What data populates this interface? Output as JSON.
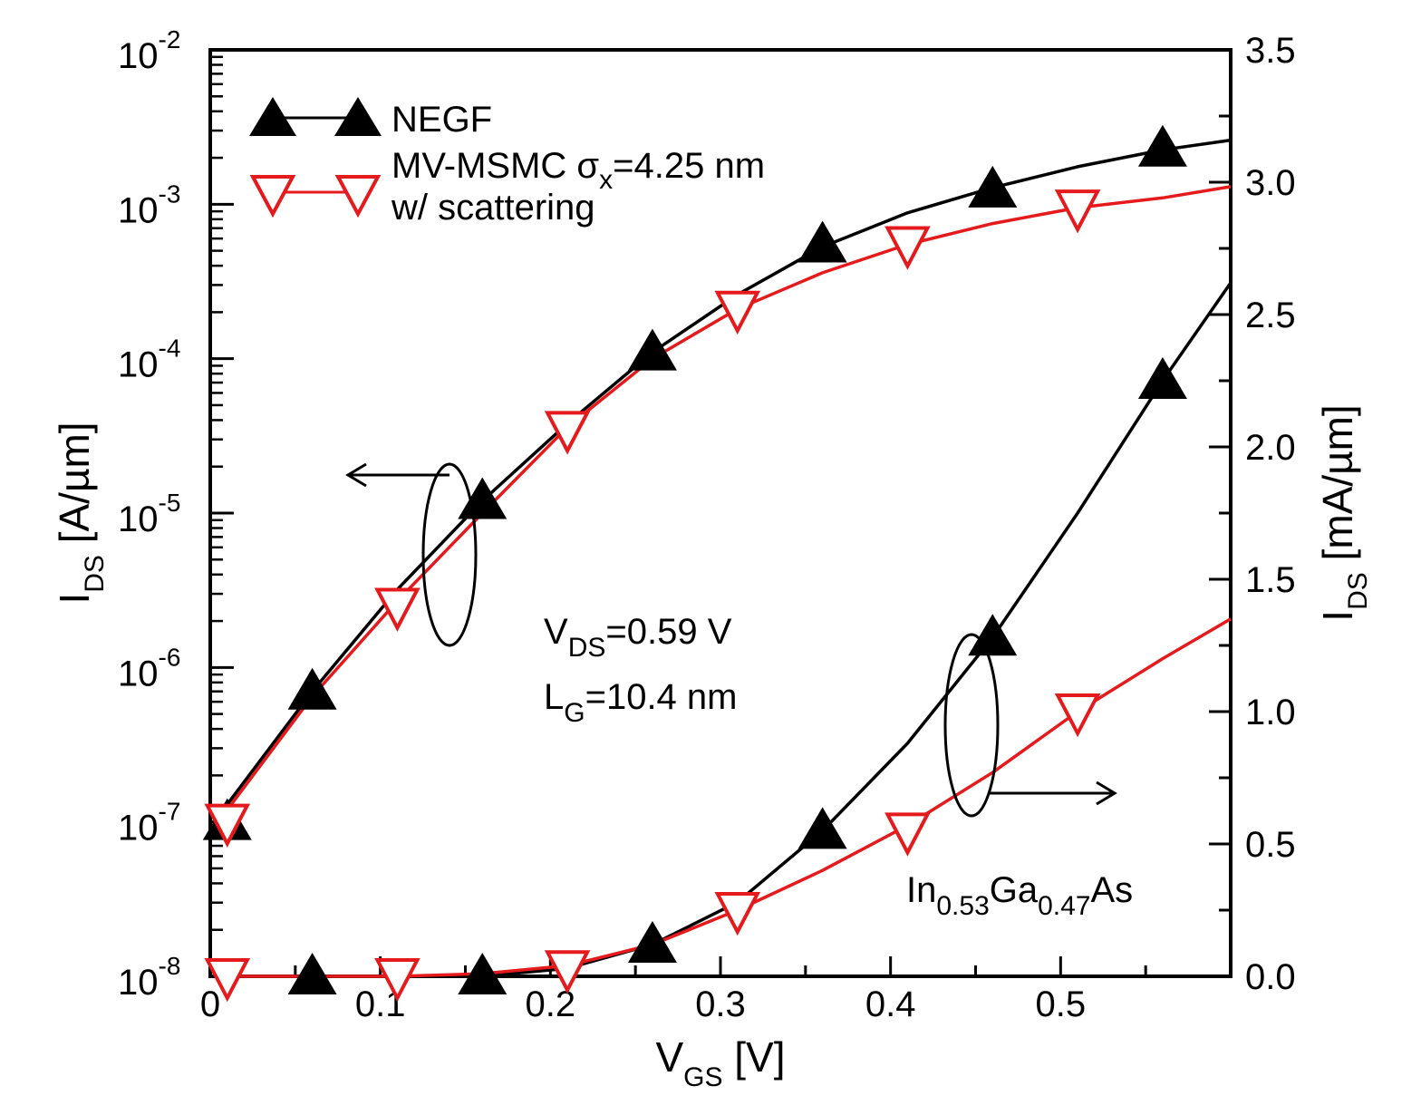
{
  "chart_data": {
    "type": "line",
    "title": "",
    "xlabel": "V_GS [V]",
    "ylabel_left": "I_DS [A/µm]",
    "ylabel_right": "I_DS [mA/µm]",
    "xlim": [
      0,
      0.6
    ],
    "ylim_left_log": [
      1e-08,
      0.01
    ],
    "ylim_right": [
      0,
      3.5
    ],
    "grid": false,
    "legend_position": "top-left",
    "x_ticks": [
      "0",
      "0.1",
      "0.2",
      "0.3",
      "0.4",
      "0.5"
    ],
    "x_tick_values": [
      0,
      0.1,
      0.2,
      0.3,
      0.4,
      0.5
    ],
    "left_tick_exponents": [
      "-8",
      "-7",
      "-6",
      "-5",
      "-4",
      "-3",
      "-2"
    ],
    "left_tick_base": "10",
    "right_ticks": [
      "0.0",
      "0.5",
      "1.0",
      "1.5",
      "2.0",
      "2.5",
      "3.0",
      "3.5"
    ],
    "right_tick_values": [
      0,
      0.5,
      1.0,
      1.5,
      2.0,
      2.5,
      3.0,
      3.5
    ],
    "series": [
      {
        "name": "NEGF",
        "color": "#000000",
        "marker": "triangle-up",
        "axis": "left",
        "x": [
          0.01,
          0.06,
          0.16,
          0.26,
          0.36,
          0.46,
          0.56
        ],
        "values": [
          1e-07,
          7e-07,
          1.2e-05,
          0.00011,
          0.00055,
          0.00125,
          0.0023
        ],
        "curve_x": [
          0.01,
          0.06,
          0.11,
          0.16,
          0.21,
          0.26,
          0.31,
          0.36,
          0.41,
          0.46,
          0.51,
          0.56,
          0.6
        ],
        "curve_y": [
          1.3e-07,
          7e-07,
          3.2e-06,
          1.2e-05,
          3.8e-05,
          0.00011,
          0.00026,
          0.00053,
          0.00088,
          0.00128,
          0.00175,
          0.00225,
          0.0026
        ]
      },
      {
        "name": "NEGF",
        "color": "#000000",
        "marker": "triangle-up",
        "axis": "right",
        "x": [
          0.06,
          0.16,
          0.26,
          0.36,
          0.46,
          0.56
        ],
        "values": [
          0.0,
          0.0,
          0.12,
          0.55,
          1.28,
          2.25
        ],
        "curve_x": [
          0.01,
          0.06,
          0.11,
          0.16,
          0.21,
          0.26,
          0.31,
          0.36,
          0.41,
          0.46,
          0.51,
          0.56,
          0.6
        ],
        "curve_y": [
          0.0,
          0.0,
          0.0,
          0.0,
          0.03,
          0.12,
          0.28,
          0.55,
          0.88,
          1.28,
          1.75,
          2.25,
          2.62
        ]
      },
      {
        "name": "MV-MSMC σx=4.25 nm w/ scattering",
        "color": "#e41a1c",
        "marker": "triangle-down",
        "axis": "left",
        "x": [
          0.01,
          0.11,
          0.21,
          0.31,
          0.41,
          0.51
        ],
        "values": [
          1e-07,
          2.5e-06,
          3.5e-05,
          0.00021,
          0.00055,
          0.00095
        ],
        "curve_x": [
          0.01,
          0.06,
          0.11,
          0.16,
          0.21,
          0.26,
          0.31,
          0.36,
          0.41,
          0.46,
          0.51,
          0.56,
          0.6
        ],
        "curve_y": [
          1.2e-07,
          6.5e-07,
          2.7e-06,
          1e-05,
          3.6e-05,
          0.0001,
          0.00021,
          0.00036,
          0.00055,
          0.00075,
          0.00095,
          0.0011,
          0.0013
        ]
      },
      {
        "name": "MV-MSMC σx=4.25 nm w/ scattering",
        "color": "#e41a1c",
        "marker": "triangle-down",
        "axis": "right",
        "x": [
          0.01,
          0.11,
          0.21,
          0.31,
          0.41,
          0.51
        ],
        "values": [
          0.0,
          0.0,
          0.03,
          0.25,
          0.55,
          1.0
        ],
        "curve_x": [
          0.01,
          0.06,
          0.11,
          0.16,
          0.21,
          0.26,
          0.31,
          0.36,
          0.41,
          0.46,
          0.51,
          0.56,
          0.6
        ],
        "curve_y": [
          0.0,
          0.0,
          0.0,
          0.01,
          0.04,
          0.12,
          0.25,
          0.4,
          0.57,
          0.77,
          1.0,
          1.2,
          1.35
        ]
      }
    ],
    "legend": {
      "negf_label": "NEGF",
      "msmc_label_line1_pre": "MV-MSMC σ",
      "msmc_label_line1_sub": "x",
      "msmc_label_line1_post": "=4.25 nm",
      "msmc_label_line2": "w/ scattering"
    },
    "annotations": {
      "vds_pre": "V",
      "vds_sub": "DS",
      "vds_post": "=0.59 V",
      "lg_pre": "L",
      "lg_sub": "G",
      "lg_post": "=10.4 nm",
      "material_a": "In",
      "material_a_sub": "0.53",
      "material_b": "Ga",
      "material_b_sub": "0.47",
      "material_c": "As"
    },
    "axis_text": {
      "x_main": "V",
      "x_sub": "GS",
      "x_unit": " [V]",
      "yl_main": "I",
      "yl_sub": "DS",
      "yl_unit": " [A/µm]",
      "yr_main": "I",
      "yr_sub": "DS",
      "yr_unit": " [mA/µm]"
    }
  }
}
